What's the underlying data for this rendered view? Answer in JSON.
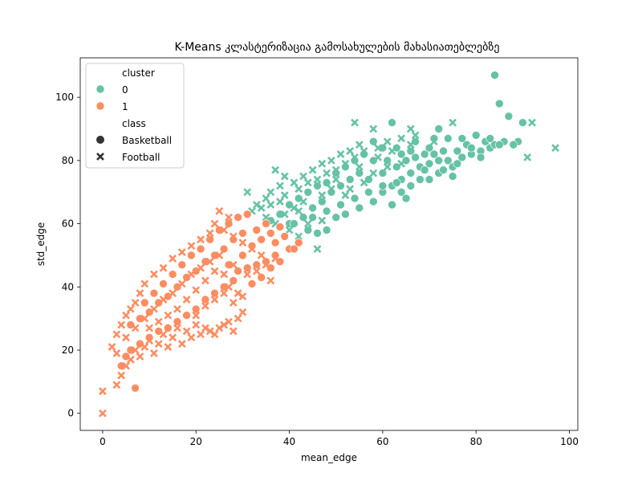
{
  "chart_data": {
    "type": "scatter",
    "title": "K-Means კლასტერიზაცია გამოსახულების მახასიათებლებზე",
    "xlabel": "mean_edge",
    "ylabel": "std_edge",
    "xlim": [
      -4.8,
      101.8
    ],
    "ylim": [
      -5.4,
      112.5
    ],
    "xticks": [
      "0",
      "20",
      "40",
      "60",
      "80",
      "100"
    ],
    "yticks": [
      "0",
      "20",
      "40",
      "60",
      "80",
      "100"
    ],
    "grid": false,
    "legend": {
      "placement": "top-left",
      "hue_title": "cluster",
      "style_title": "class",
      "entries": [
        {
          "label": "0",
          "color": "#66c2a5",
          "marker": "circle"
        },
        {
          "label": "1",
          "color": "#fc8d62",
          "marker": "circle"
        },
        {
          "label": "Basketball",
          "color": "#333333",
          "marker": "circle"
        },
        {
          "label": "Football",
          "color": "#333333",
          "marker": "x"
        }
      ]
    },
    "colors": {
      "cluster_0": "#66c2a5",
      "cluster_1": "#fc8d62"
    },
    "series": [
      {
        "cluster": "0",
        "class": "Basketball",
        "color": "#66c2a5",
        "marker": "circle",
        "points": [
          [
            84,
            107
          ],
          [
            85,
            98
          ],
          [
            87,
            94
          ],
          [
            90,
            92
          ],
          [
            89,
            86
          ],
          [
            62,
            92
          ],
          [
            72,
            90
          ],
          [
            74,
            87
          ],
          [
            80,
            88
          ],
          [
            82,
            86
          ],
          [
            86,
            86
          ],
          [
            88,
            85
          ],
          [
            83,
            84
          ],
          [
            78,
            85
          ],
          [
            76,
            83
          ],
          [
            70,
            84
          ],
          [
            66,
            83
          ],
          [
            64,
            82
          ],
          [
            60,
            84
          ],
          [
            58,
            86
          ],
          [
            56,
            82
          ],
          [
            54,
            80
          ],
          [
            52,
            78
          ],
          [
            50,
            76
          ],
          [
            48,
            73
          ],
          [
            46,
            72
          ],
          [
            44,
            70
          ],
          [
            42,
            68
          ],
          [
            40,
            66
          ],
          [
            38,
            63
          ],
          [
            36,
            61
          ],
          [
            40,
            60
          ],
          [
            44,
            58
          ],
          [
            46,
            57
          ],
          [
            48,
            58
          ],
          [
            50,
            62
          ],
          [
            52,
            63
          ],
          [
            55,
            65
          ],
          [
            58,
            67
          ],
          [
            60,
            70
          ],
          [
            62,
            72
          ],
          [
            64,
            74
          ],
          [
            66,
            76
          ],
          [
            68,
            78
          ],
          [
            70,
            79
          ],
          [
            72,
            80
          ],
          [
            74,
            80
          ],
          [
            75,
            78
          ],
          [
            72,
            76
          ],
          [
            68,
            74
          ],
          [
            66,
            72
          ],
          [
            64,
            70
          ],
          [
            60,
            72
          ],
          [
            57,
            74
          ],
          [
            55,
            76
          ],
          [
            53,
            74
          ],
          [
            51,
            72
          ],
          [
            49,
            70
          ],
          [
            47,
            67
          ],
          [
            45,
            65
          ],
          [
            43,
            62
          ],
          [
            41,
            60
          ],
          [
            45,
            62
          ],
          [
            48,
            64
          ],
          [
            51,
            66
          ],
          [
            54,
            68
          ],
          [
            57,
            70
          ],
          [
            60,
            76
          ],
          [
            63,
            78
          ],
          [
            65,
            80
          ],
          [
            67,
            81
          ],
          [
            69,
            82
          ],
          [
            71,
            82
          ],
          [
            73,
            83
          ],
          [
            77,
            81
          ],
          [
            79,
            82
          ],
          [
            81,
            83
          ],
          [
            84,
            85
          ],
          [
            75,
            75
          ],
          [
            73,
            77
          ],
          [
            70,
            74
          ],
          [
            65,
            68
          ],
          [
            62,
            66
          ],
          [
            58,
            80
          ],
          [
            61,
            80
          ],
          [
            63,
            84
          ],
          [
            67,
            86
          ],
          [
            71,
            87
          ],
          [
            77,
            87
          ],
          [
            81,
            81
          ],
          [
            85,
            85
          ],
          [
            63,
            73
          ],
          [
            69,
            77
          ],
          [
            76,
            79
          ],
          [
            83,
            87
          ],
          [
            79,
            84
          ]
        ]
      },
      {
        "cluster": "0",
        "class": "Football",
        "color": "#66c2a5",
        "marker": "x",
        "points": [
          [
            97,
            84
          ],
          [
            92,
            92
          ],
          [
            91,
            81
          ],
          [
            54,
            92
          ],
          [
            58,
            90
          ],
          [
            66,
            90
          ],
          [
            75,
            92
          ],
          [
            37,
            77
          ],
          [
            39,
            75
          ],
          [
            31,
            70
          ],
          [
            35,
            68
          ],
          [
            33,
            66
          ],
          [
            38,
            72
          ],
          [
            41,
            73
          ],
          [
            43,
            75
          ],
          [
            45,
            77
          ],
          [
            47,
            79
          ],
          [
            49,
            80
          ],
          [
            51,
            82
          ],
          [
            53,
            83
          ],
          [
            55,
            85
          ],
          [
            46,
            52
          ],
          [
            42,
            56
          ],
          [
            40,
            58
          ],
          [
            37,
            60
          ],
          [
            35,
            62
          ],
          [
            32,
            64
          ],
          [
            34,
            65
          ],
          [
            36,
            66
          ],
          [
            39,
            69
          ],
          [
            42,
            71
          ],
          [
            44,
            73
          ],
          [
            46,
            74
          ],
          [
            48,
            76
          ],
          [
            50,
            77
          ],
          [
            52,
            79
          ],
          [
            54,
            81
          ],
          [
            56,
            83
          ],
          [
            59,
            84
          ],
          [
            61,
            86
          ],
          [
            64,
            87
          ],
          [
            67,
            88
          ],
          [
            71,
            86
          ],
          [
            39,
            63
          ],
          [
            41,
            65
          ],
          [
            43,
            67
          ],
          [
            47,
            69
          ],
          [
            49,
            71
          ],
          [
            53,
            71
          ],
          [
            56,
            73
          ],
          [
            58,
            76
          ],
          [
            61,
            78
          ],
          [
            64,
            79
          ],
          [
            52,
            69
          ],
          [
            47,
            61
          ],
          [
            44,
            60
          ],
          [
            42,
            64
          ],
          [
            38,
            67
          ],
          [
            36,
            70
          ],
          [
            50,
            74
          ],
          [
            55,
            78
          ],
          [
            59,
            81
          ],
          [
            62,
            83
          ],
          [
            66,
            85
          ]
        ]
      },
      {
        "cluster": "1",
        "class": "Basketball",
        "color": "#fc8d62",
        "marker": "circle",
        "points": [
          [
            7,
            8
          ],
          [
            32,
            41
          ],
          [
            34,
            43
          ],
          [
            36,
            46
          ],
          [
            38,
            48
          ],
          [
            40,
            52
          ],
          [
            41,
            52
          ],
          [
            42,
            54
          ],
          [
            37,
            50
          ],
          [
            35,
            48
          ],
          [
            33,
            47
          ],
          [
            31,
            46
          ],
          [
            29,
            45
          ],
          [
            27,
            47
          ],
          [
            30,
            50
          ],
          [
            32,
            53
          ],
          [
            34,
            55
          ],
          [
            36,
            57
          ],
          [
            38,
            59
          ],
          [
            28,
            55
          ],
          [
            26,
            52
          ],
          [
            24,
            50
          ],
          [
            22,
            48
          ],
          [
            20,
            45
          ],
          [
            18,
            43
          ],
          [
            16,
            40
          ],
          [
            14,
            37
          ],
          [
            12,
            35
          ],
          [
            10,
            32
          ],
          [
            8,
            30
          ],
          [
            6,
            28
          ],
          [
            25,
            58
          ],
          [
            27,
            60
          ],
          [
            29,
            62
          ],
          [
            31,
            63
          ],
          [
            23,
            55
          ],
          [
            21,
            52
          ],
          [
            19,
            50
          ],
          [
            17,
            47
          ],
          [
            15,
            44
          ],
          [
            13,
            41
          ],
          [
            11,
            38
          ],
          [
            9,
            35
          ],
          [
            30,
            57
          ],
          [
            33,
            58
          ],
          [
            35,
            60
          ],
          [
            37,
            54
          ],
          [
            39,
            56
          ],
          [
            28,
            42
          ],
          [
            26,
            40
          ],
          [
            24,
            38
          ],
          [
            22,
            36
          ],
          [
            20,
            33
          ],
          [
            18,
            31
          ],
          [
            16,
            29
          ],
          [
            14,
            27
          ],
          [
            12,
            26
          ],
          [
            10,
            24
          ],
          [
            8,
            22
          ],
          [
            6,
            20
          ],
          [
            5,
            18
          ],
          [
            4,
            15
          ]
        ]
      },
      {
        "cluster": "1",
        "class": "Football",
        "color": "#fc8d62",
        "marker": "x",
        "points": [
          [
            0,
            0
          ],
          [
            0,
            7
          ],
          [
            3,
            9
          ],
          [
            4,
            12
          ],
          [
            5,
            15
          ],
          [
            6,
            17
          ],
          [
            7,
            20
          ],
          [
            8,
            18
          ],
          [
            9,
            21
          ],
          [
            10,
            23
          ],
          [
            11,
            19
          ],
          [
            12,
            22
          ],
          [
            13,
            25
          ],
          [
            14,
            21
          ],
          [
            15,
            24
          ],
          [
            16,
            27
          ],
          [
            17,
            22
          ],
          [
            18,
            26
          ],
          [
            19,
            24
          ],
          [
            20,
            28
          ],
          [
            21,
            25
          ],
          [
            22,
            27
          ],
          [
            23,
            26
          ],
          [
            24,
            25
          ],
          [
            25,
            27
          ],
          [
            26,
            28
          ],
          [
            27,
            29
          ],
          [
            28,
            26
          ],
          [
            29,
            30
          ],
          [
            30,
            32
          ],
          [
            27,
            40
          ],
          [
            29,
            38
          ],
          [
            31,
            44
          ],
          [
            33,
            45
          ],
          [
            35,
            47
          ],
          [
            37,
            49
          ],
          [
            36,
            42
          ],
          [
            34,
            50
          ],
          [
            32,
            52
          ],
          [
            30,
            54
          ],
          [
            28,
            56
          ],
          [
            26,
            58
          ],
          [
            24,
            60
          ],
          [
            25,
            64
          ],
          [
            27,
            62
          ],
          [
            23,
            57
          ],
          [
            21,
            55
          ],
          [
            19,
            53
          ],
          [
            17,
            51
          ],
          [
            15,
            49
          ],
          [
            13,
            46
          ],
          [
            11,
            44
          ],
          [
            9,
            41
          ],
          [
            8,
            38
          ],
          [
            7,
            35
          ],
          [
            6,
            33
          ],
          [
            5,
            31
          ],
          [
            4,
            28
          ],
          [
            3,
            25
          ],
          [
            2,
            21
          ],
          [
            3,
            19
          ],
          [
            5,
            24
          ],
          [
            7,
            27
          ],
          [
            9,
            30
          ],
          [
            11,
            33
          ],
          [
            13,
            36
          ],
          [
            15,
            38
          ],
          [
            17,
            41
          ],
          [
            19,
            44
          ],
          [
            21,
            46
          ],
          [
            23,
            48
          ],
          [
            25,
            50
          ],
          [
            22,
            42
          ],
          [
            20,
            39
          ],
          [
            18,
            36
          ],
          [
            16,
            33
          ],
          [
            14,
            31
          ],
          [
            12,
            29
          ],
          [
            10,
            27
          ],
          [
            26,
            44
          ],
          [
            28,
            47
          ],
          [
            24,
            45
          ],
          [
            20,
            31
          ],
          [
            22,
            34
          ],
          [
            24,
            36
          ],
          [
            26,
            38
          ],
          [
            28,
            35
          ],
          [
            30,
            37
          ]
        ]
      }
    ]
  }
}
